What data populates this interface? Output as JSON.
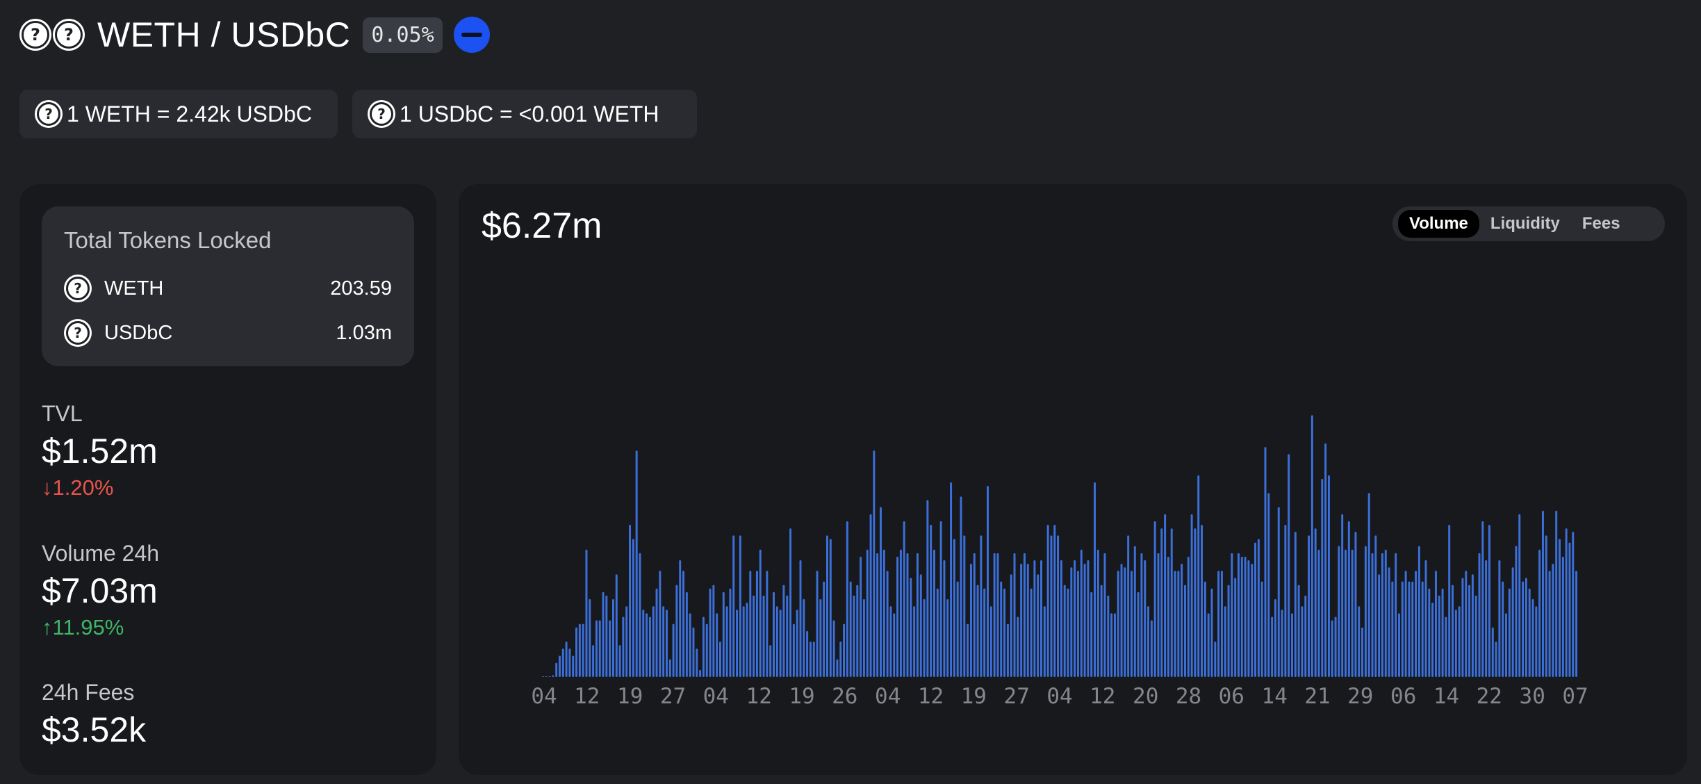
{
  "header": {
    "pair": "WETH / USDbC",
    "fee_tier": "0.05%",
    "token_icons": [
      "unknown-token-icon",
      "unknown-token-icon"
    ],
    "chain_icon": "base-chain-icon"
  },
  "prices": [
    {
      "text": "1 WETH = 2.42k USDbC"
    },
    {
      "text": "1 USDbC = <0.001 WETH"
    }
  ],
  "tokens_locked": {
    "title": "Total Tokens Locked",
    "rows": [
      {
        "symbol": "WETH",
        "amount": "203.59"
      },
      {
        "symbol": "USDbC",
        "amount": "1.03m"
      }
    ]
  },
  "stats": {
    "tvl": {
      "label": "TVL",
      "value": "$1.52m",
      "change": "↓1.20%",
      "direction": "down"
    },
    "volume": {
      "label": "Volume 24h",
      "value": "$7.03m",
      "change": "↑11.95%",
      "direction": "up"
    },
    "fees": {
      "label": "24h Fees",
      "value": "$3.52k"
    }
  },
  "chart": {
    "headline": "$6.27m",
    "tabs": [
      "Volume",
      "Liquidity",
      "Fees"
    ],
    "active_tab": "Volume"
  },
  "colors": {
    "bar": "#3b6fd9",
    "down": "#e8554e",
    "up": "#3fb568",
    "chain": "#1d52f2"
  },
  "chart_data": {
    "type": "bar",
    "title": "",
    "xlabel": "",
    "ylabel": "",
    "x_tick_labels": [
      "04",
      "12",
      "19",
      "27",
      "04",
      "12",
      "19",
      "26",
      "04",
      "12",
      "19",
      "27",
      "04",
      "12",
      "20",
      "28",
      "06",
      "14",
      "21",
      "29",
      "06",
      "14",
      "22",
      "30",
      "07"
    ],
    "ylim": [
      0,
      10
    ],
    "values": [
      0.01,
      0.02,
      0.02,
      0.05,
      0.4,
      0.6,
      0.8,
      1.0,
      0.8,
      0.6,
      1.4,
      1.5,
      1.5,
      3.6,
      2.2,
      0.9,
      1.6,
      1.6,
      2.4,
      2.3,
      1.6,
      2.2,
      2.9,
      0.9,
      1.7,
      2.0,
      4.3,
      3.9,
      6.4,
      3.5,
      1.9,
      1.8,
      1.7,
      2.0,
      2.5,
      3.0,
      2.0,
      1.9,
      0.5,
      1.5,
      2.6,
      3.3,
      3.0,
      2.4,
      1.8,
      1.4,
      0.8,
      0.2,
      1.7,
      1.5,
      2.5,
      2.6,
      1.8,
      1.0,
      2.4,
      2.0,
      2.5,
      4.0,
      1.9,
      4.0,
      2.0,
      2.1,
      3.0,
      2.3,
      3.0,
      3.6,
      2.3,
      3.0,
      0.9,
      2.4,
      2.0,
      1.9,
      2.6,
      2.3,
      4.2,
      1.5,
      1.9,
      3.3,
      2.2,
      1.3,
      1.0,
      1.0,
      3.0,
      2.2,
      2.7,
      4.0,
      3.9,
      1.6,
      0.5,
      1.0,
      1.5,
      4.4,
      2.7,
      2.3,
      2.6,
      3.4,
      2.2,
      3.6,
      4.6,
      6.4,
      3.5,
      4.8,
      3.6,
      3.0,
      2.0,
      1.8,
      3.4,
      3.6,
      4.4,
      3.5,
      2.8,
      2.0,
      3.5,
      2.9,
      2.2,
      5.0,
      4.3,
      3.6,
      2.5,
      4.4,
      3.3,
      2.2,
      5.5,
      3.9,
      2.7,
      5.1,
      4.0,
      1.5,
      3.2,
      3.5,
      2.6,
      4.0,
      2.5,
      5.4,
      2.0,
      3.5,
      3.5,
      2.7,
      2.5,
      1.5,
      2.9,
      3.5,
      1.7,
      3.2,
      3.5,
      3.2,
      2.5,
      3.3,
      2.9,
      3.3,
      2.0,
      4.3,
      4.0,
      4.3,
      4.0,
      3.3,
      2.6,
      2.5,
      3.1,
      3.3,
      3.0,
      3.6,
      3.2,
      3.3,
      2.4,
      5.5,
      3.6,
      2.6,
      3.5,
      2.3,
      1.8,
      1.8,
      3.0,
      3.2,
      3.1,
      4.0,
      3.0,
      3.7,
      2.4,
      3.5,
      3.3,
      2.0,
      1.6,
      4.4,
      3.5,
      4.2,
      4.6,
      3.4,
      4.2,
      3.0,
      3.0,
      3.2,
      2.6,
      3.4,
      4.6,
      4.2,
      5.7,
      4.3,
      2.7,
      1.8,
      2.5,
      1.0,
      3.0,
      3.0,
      2.0,
      2.6,
      3.5,
      2.8,
      3.5,
      3.4,
      3.4,
      3.3,
      3.2,
      3.8,
      3.9,
      2.7,
      6.5,
      5.2,
      1.7,
      2.2,
      4.8,
      1.9,
      4.3,
      6.3,
      1.8,
      4.1,
      2.6,
      2.0,
      2.3,
      4.0,
      7.4,
      4.2,
      3.6,
      5.6,
      6.6,
      5.7,
      1.6,
      1.7,
      3.7,
      4.6,
      3.6,
      4.4,
      3.6,
      4.1,
      2.0,
      1.4,
      3.7,
      5.2,
      3.5,
      4.0,
      2.9,
      3.5,
      3.6,
      3.1,
      2.7,
      3.5,
      1.8,
      2.7,
      3.0,
      2.7,
      2.7,
      3.0,
      3.7,
      2.7,
      3.3,
      2.5,
      2.1,
      3.0,
      2.3,
      2.5,
      1.7,
      4.3,
      2.6,
      1.9,
      2.0,
      2.8,
      3.0,
      2.6,
      2.9,
      2.3,
      3.5,
      4.4,
      3.3,
      4.3,
      1.4,
      1.0,
      3.3,
      2.7,
      1.8,
      2.5,
      3.1,
      3.7,
      4.6,
      2.7,
      2.8,
      2.5,
      2.2,
      2.0,
      3.6,
      4.7,
      4.0,
      3.0,
      3.2,
      4.7,
      3.9,
      3.4,
      4.2,
      3.8,
      4.1,
      3.0
    ]
  }
}
